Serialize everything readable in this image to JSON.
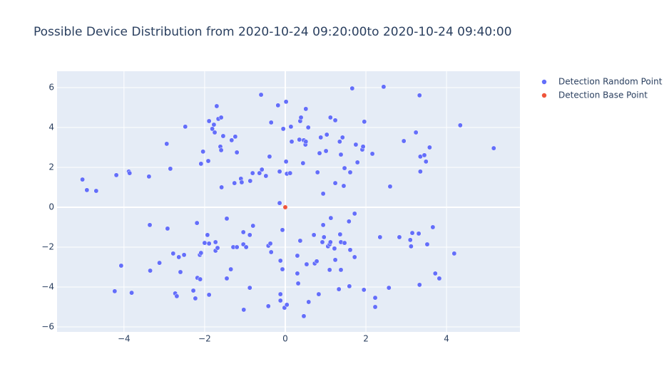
{
  "chart_data": {
    "type": "scatter",
    "title": "Possible Device Distribution from 2020-10-24 09:20:00to 2020-10-24 09:40:00",
    "xlim": [
      -5.66,
      5.82
    ],
    "ylim": [
      -6.25,
      6.82
    ],
    "xticks": [
      {
        "value": -4,
        "label": "−4"
      },
      {
        "value": -2,
        "label": "−2"
      },
      0,
      2,
      4
    ],
    "yticks": [
      {
        "value": -6,
        "label": "−6"
      },
      {
        "value": -4,
        "label": "−4"
      },
      {
        "value": -2,
        "label": "−2"
      },
      0,
      2,
      4,
      6
    ],
    "grid": true,
    "legend": "right",
    "series": [
      {
        "name": "Detection Random Point",
        "color": "#636efa",
        "x": [
          -5.03,
          -4.92,
          -4.69,
          -4.19,
          -3.88,
          -3.86,
          -3.38,
          -2.94,
          -2.85,
          -2.48,
          -2.09,
          -2.04,
          -1.91,
          -1.89,
          -1.81,
          -1.77,
          -1.75,
          -1.7,
          -1.66,
          -1.59,
          -1.61,
          -1.59,
          -1.54,
          -1.58,
          -1.33,
          -1.24,
          -1.2,
          -1.26,
          -1.1,
          -1.08,
          -0.87,
          -0.81,
          -0.6,
          -0.64,
          -0.58,
          -0.48,
          -0.39,
          -0.35,
          -0.18,
          -0.14,
          -0.14,
          -0.05,
          0.02,
          0.02,
          0.04,
          0.12,
          0.16,
          0.14,
          0.35,
          0.37,
          0.39,
          0.44,
          0.46,
          0.5,
          0.51,
          0.51,
          0.57,
          0.8,
          0.85,
          0.88,
          0.94,
          1.01,
          1.03,
          1.12,
          1.24,
          1.24,
          1.35,
          1.38,
          1.42,
          1.45,
          1.47,
          1.61,
          1.66,
          1.75,
          1.79,
          1.91,
          1.93,
          1.96,
          2.16,
          2.44,
          2.6,
          2.94,
          3.24,
          3.33,
          3.35,
          3.35,
          3.45,
          3.49,
          3.58,
          4.34,
          5.17,
          -4.07,
          -4.23,
          -3.81,
          -3.36,
          -3.35,
          -3.12,
          -2.92,
          -2.78,
          -2.73,
          -2.69,
          -2.64,
          -2.6,
          -2.51,
          -2.28,
          -2.23,
          -2.19,
          -2.18,
          -2.11,
          -2.12,
          -2.09,
          -2.0,
          -1.93,
          -1.89,
          -1.89,
          -1.73,
          -1.73,
          -1.68,
          -1.45,
          -1.45,
          -1.35,
          -1.29,
          -1.2,
          -1.04,
          -1.04,
          -1.03,
          -0.97,
          -0.88,
          -0.88,
          -0.8,
          -0.42,
          -0.42,
          -0.37,
          -0.35,
          -0.12,
          -0.12,
          -0.12,
          -0.07,
          -0.07,
          -0.02,
          0.04,
          0.3,
          0.3,
          0.32,
          0.37,
          0.46,
          0.53,
          0.58,
          0.71,
          0.73,
          0.78,
          0.83,
          0.92,
          0.94,
          0.96,
          1.06,
          1.1,
          1.1,
          1.12,
          1.13,
          1.22,
          1.24,
          1.33,
          1.36,
          1.38,
          1.38,
          1.47,
          1.58,
          1.59,
          1.61,
          1.72,
          1.72,
          1.95,
          2.23,
          2.23,
          2.35,
          2.57,
          2.83,
          3.1,
          3.12,
          3.15,
          3.31,
          3.33,
          3.52,
          3.66,
          3.72,
          3.82,
          4.19
        ],
        "y": [
          1.39,
          0.86,
          0.82,
          1.61,
          1.79,
          1.71,
          1.54,
          3.18,
          1.93,
          4.04,
          2.18,
          2.79,
          2.32,
          4.32,
          3.93,
          4.14,
          3.75,
          5.07,
          4.43,
          4.5,
          3.04,
          2.86,
          3.57,
          1.0,
          3.36,
          3.54,
          2.75,
          1.21,
          1.43,
          1.25,
          1.32,
          1.71,
          5.64,
          1.71,
          1.89,
          1.57,
          2.54,
          4.25,
          5.11,
          1.79,
          0.21,
          3.93,
          5.29,
          2.29,
          1.68,
          1.71,
          3.29,
          4.04,
          3.39,
          4.32,
          4.5,
          2.21,
          3.36,
          3.14,
          3.29,
          4.93,
          4.0,
          1.75,
          2.71,
          3.5,
          0.68,
          2.82,
          3.64,
          4.5,
          4.36,
          1.21,
          3.29,
          2.64,
          3.5,
          1.07,
          1.96,
          1.75,
          5.96,
          3.14,
          2.25,
          2.89,
          3.04,
          4.29,
          2.68,
          6.04,
          1.04,
          3.32,
          3.75,
          5.61,
          2.54,
          1.79,
          2.61,
          2.29,
          3.0,
          4.11,
          2.96,
          -2.93,
          -4.21,
          -4.29,
          -0.89,
          -3.18,
          -2.79,
          -1.07,
          -2.32,
          -4.32,
          -4.46,
          -2.5,
          -3.25,
          -2.39,
          -4.18,
          -4.57,
          -0.79,
          -3.54,
          -3.61,
          -2.39,
          -2.29,
          -1.79,
          -1.39,
          -1.82,
          -4.39,
          -2.18,
          -1.75,
          -2.04,
          -0.57,
          -3.57,
          -3.11,
          -2.0,
          -2.0,
          -1.25,
          -1.86,
          -5.14,
          -2.0,
          -1.39,
          -4.04,
          -0.93,
          -4.96,
          -1.93,
          -1.82,
          -2.25,
          -2.68,
          -4.36,
          -4.68,
          -1.14,
          -3.11,
          -5.04,
          -4.89,
          -2.43,
          -3.32,
          -3.82,
          -1.68,
          -5.46,
          -2.86,
          -4.75,
          -1.39,
          -2.82,
          -2.71,
          -4.36,
          -1.75,
          -0.89,
          -1.5,
          -1.96,
          -1.86,
          -3.14,
          -1.75,
          -0.54,
          -2.07,
          -2.64,
          -4.11,
          -1.36,
          -1.75,
          -3.14,
          -1.79,
          -0.71,
          -3.96,
          -2.14,
          -0.32,
          -2.5,
          -4.14,
          -4.54,
          -5.0,
          -1.5,
          -4.04,
          -1.5,
          -1.64,
          -1.96,
          -1.29,
          -1.32,
          -3.89,
          -1.86,
          -1.0,
          -3.32,
          -3.57,
          -2.32
        ]
      },
      {
        "name": "Detection Base Point",
        "color": "#EF553B",
        "x": [
          0
        ],
        "y": [
          0
        ]
      }
    ]
  }
}
